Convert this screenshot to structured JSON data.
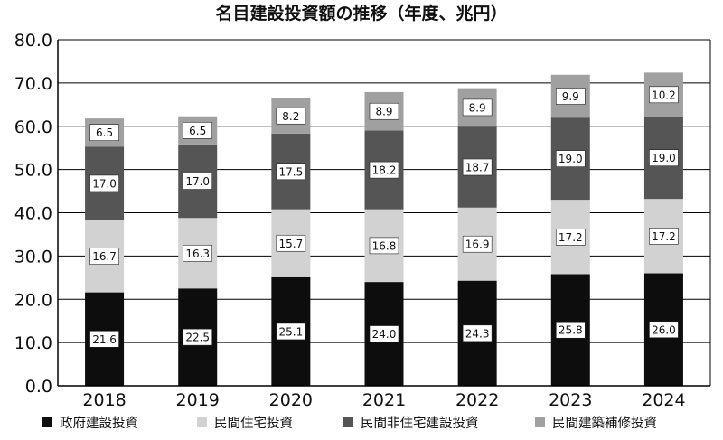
{
  "chart_data": {
    "type": "bar",
    "stacked": true,
    "title": "名目建設投資額の推移（年度、兆円）",
    "xlabel": "",
    "ylabel": "",
    "ylim": [
      0,
      80
    ],
    "yticks": [
      "0.0",
      "10.0",
      "20.0",
      "30.0",
      "40.0",
      "50.0",
      "60.0",
      "70.0",
      "80.0"
    ],
    "grid": true,
    "legend_position": "bottom",
    "categories": [
      "2018",
      "2019",
      "2020",
      "2021",
      "2022",
      "2023",
      "2024"
    ],
    "series": [
      {
        "name": "政府建設投資",
        "color": "#0d0d0d",
        "values": [
          21.6,
          22.5,
          25.1,
          24.0,
          24.3,
          25.8,
          26.0
        ],
        "labels": [
          "21.6",
          "22.5",
          "25.1",
          "24.0",
          "24.3",
          "25.8",
          "26.0"
        ]
      },
      {
        "name": "民間住宅投資",
        "color": "#d2d2d2",
        "values": [
          16.7,
          16.3,
          15.7,
          16.8,
          16.9,
          17.2,
          17.2
        ],
        "labels": [
          "16.7",
          "16.3",
          "15.7",
          "16.8",
          "16.9",
          "17.2",
          "17.2"
        ]
      },
      {
        "name": "民間非住宅建設投資",
        "color": "#555555",
        "values": [
          17.0,
          17.0,
          17.5,
          18.2,
          18.7,
          19.0,
          19.0
        ],
        "labels": [
          "17.0",
          "17.0",
          "17.5",
          "18.2",
          "18.7",
          "19.0",
          "19.0"
        ]
      },
      {
        "name": "民間建築補修投資",
        "color": "#a0a0a0",
        "values": [
          6.5,
          6.5,
          8.2,
          8.9,
          8.9,
          9.9,
          10.2
        ],
        "labels": [
          "6.5",
          "6.5",
          "8.2",
          "8.9",
          "8.9",
          "9.9",
          "10.2"
        ]
      }
    ]
  }
}
